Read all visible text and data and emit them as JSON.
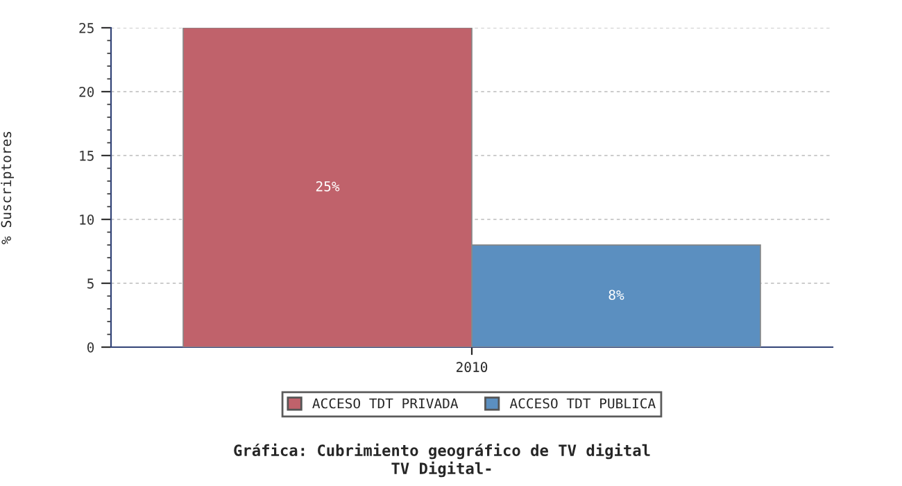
{
  "chart_data": {
    "type": "bar",
    "title": "Gráfica: Cubrimiento geográfico de TV digital",
    "subtitle": "TV Digital-",
    "ylabel": "% Suscriptores",
    "categories": [
      "2010"
    ],
    "series": [
      {
        "name": "ACCESO TDT PRIVADA",
        "color": "#c0626b",
        "values": [
          25
        ],
        "value_labels": [
          "25%"
        ]
      },
      {
        "name": "ACCESO TDT PUBLICA",
        "color": "#5b8fc0",
        "values": [
          8
        ],
        "value_labels": [
          "8%"
        ]
      }
    ],
    "ylim": [
      0,
      25
    ],
    "yticks": [
      0,
      5,
      10,
      15,
      20,
      25
    ],
    "grid": "y",
    "legend": "bottom"
  }
}
